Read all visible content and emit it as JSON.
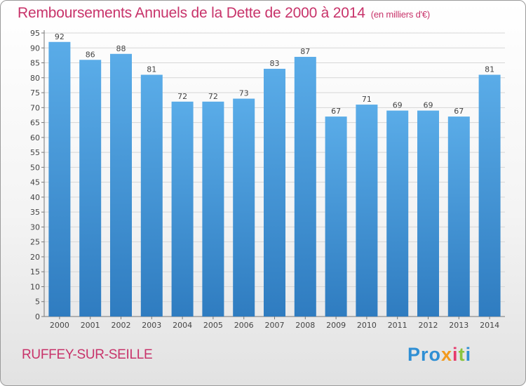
{
  "title": "Remboursements Annuels de la Dette de 2000 à 2014",
  "subtitle": "(en milliers d'€)",
  "commune": "RUFFEY-SUR-SEILLE",
  "logo": [
    "Pro",
    "x",
    "i",
    "t",
    "i"
  ],
  "colors": {
    "accent": "#c8336a",
    "bar_light": "#5aace8",
    "bar_dark": "#2f7cc0",
    "grid": "#d6d6d6",
    "label": "#444444"
  },
  "chart_data": {
    "type": "bar",
    "categories": [
      "2000",
      "2001",
      "2002",
      "2003",
      "2004",
      "2005",
      "2006",
      "2007",
      "2008",
      "2009",
      "2010",
      "2011",
      "2012",
      "2013",
      "2014"
    ],
    "values": [
      92,
      86,
      88,
      81,
      72,
      72,
      73,
      83,
      87,
      67,
      71,
      69,
      69,
      67,
      81
    ],
    "yticks": [
      0,
      5,
      10,
      15,
      20,
      25,
      30,
      35,
      40,
      45,
      50,
      55,
      60,
      65,
      70,
      75,
      80,
      85,
      90,
      95
    ],
    "ylim": [
      0,
      95
    ],
    "title": "Remboursements Annuels de la Dette de 2000 à 2014",
    "xlabel": "",
    "ylabel": "",
    "grid": true
  }
}
